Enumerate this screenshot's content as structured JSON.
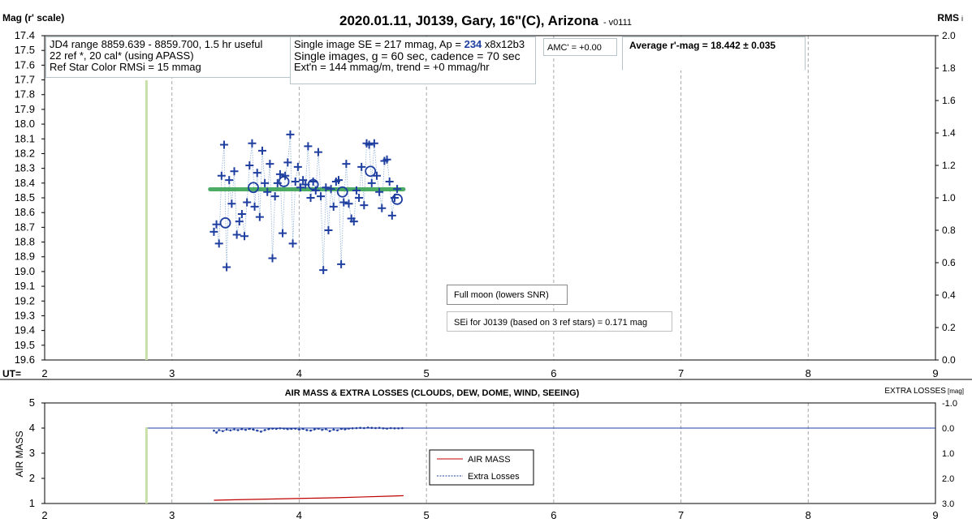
{
  "title": "2020.01.11, J0139, Gary, 16\"(C), Arizona",
  "version": "- v0111",
  "top_left_label": "Mag (r' scale)",
  "top_right_label": "RMS",
  "top_right_suffix": "i",
  "ut_label": "UT=",
  "info_box_1": [
    "JD4 range 8859.639 - 8859.700, 1.5 hr useful",
    "22 ref *, 20 cal* (using APASS)",
    "Ref Star Color RMSi = 15 mmag"
  ],
  "info_box_2": {
    "line1_prefix": "Single image SE = 217 mmag, Ap =",
    "line1_ap": "234",
    "line1_suffix": "x8x12b3",
    "line2": "Single images, g = 60 sec, cadence = 70 sec",
    "line3": "Ext'n = 144 mmag/m, trend = +0 mmag/hr"
  },
  "amc_label": "AMC' = +0.00",
  "average_label": "Average r'-mag =  18.442 ± 0.035",
  "note_full_moon": "Full moon (lowers SNR)",
  "note_sei": "SEi for J0139 (based on 3 ref stars) = 0.171 mag",
  "bottom_title": "AIR MASS & EXTRA LOSSES (CLOUDS, DEW, DOME, WIND, SEEING)",
  "bottom_right_label": "EXTRA LOSSES",
  "bottom_right_unit": "[mag]",
  "bottom_ylabel": "AIR MASS",
  "colors": {
    "points": "#1f3fa0",
    "average_line": "#2e9e4a",
    "marker_line": "#c8e0a8",
    "airmass": "#c00000",
    "extra_losses": "#1f3fa0",
    "grid": "#a8a8a8"
  },
  "chart_data": [
    {
      "type": "scatter",
      "x_label": "UT",
      "xlim": [
        2,
        9
      ],
      "x_ticks": [
        2,
        3,
        4,
        5,
        6,
        7,
        8,
        9
      ],
      "y_label": "Mag (r' scale)",
      "ylim": [
        17.4,
        19.6
      ],
      "y_inverted": true,
      "y_ticks": [
        17.4,
        17.5,
        17.6,
        17.7,
        17.8,
        17.9,
        18.0,
        18.1,
        18.2,
        18.3,
        18.4,
        18.5,
        18.6,
        18.7,
        18.8,
        18.9,
        19.0,
        19.1,
        19.2,
        19.3,
        19.4,
        19.5,
        19.6
      ],
      "y2_label": "RMS i",
      "y2lim": [
        0.0,
        2.0
      ],
      "y2_ticks": [
        0.0,
        0.2,
        0.4,
        0.6,
        0.8,
        1.0,
        1.2,
        1.4,
        1.6,
        1.8,
        2.0
      ],
      "vertical_marker_x": 2.8,
      "average_mag": 18.442,
      "average_x_range": [
        3.3,
        4.82
      ],
      "series": [
        {
          "marker": "plus",
          "x": [
            3.33,
            3.35,
            3.37,
            3.39,
            3.41,
            3.43,
            3.45,
            3.47,
            3.49,
            3.51,
            3.53,
            3.55,
            3.57,
            3.59,
            3.61,
            3.63,
            3.65,
            3.67,
            3.69,
            3.71,
            3.73,
            3.75,
            3.77,
            3.79,
            3.81,
            3.83,
            3.85,
            3.87,
            3.89,
            3.91,
            3.93,
            3.95,
            3.97,
            3.99,
            4.01,
            4.03,
            4.05,
            4.07,
            4.09,
            4.11,
            4.13,
            4.15,
            4.17,
            4.19,
            4.21,
            4.23,
            4.25,
            4.27,
            4.29,
            4.31,
            4.33,
            4.35,
            4.37,
            4.39,
            4.41,
            4.43,
            4.45,
            4.47,
            4.49,
            4.51,
            4.53,
            4.55,
            4.57,
            4.59,
            4.61,
            4.63,
            4.65,
            4.67,
            4.69,
            4.71,
            4.73,
            4.75,
            4.77
          ],
          "y": [
            18.73,
            18.68,
            18.81,
            18.35,
            18.14,
            18.97,
            18.38,
            18.54,
            18.32,
            18.75,
            18.66,
            18.61,
            18.76,
            18.53,
            18.28,
            18.13,
            18.56,
            18.33,
            18.63,
            18.18,
            18.4,
            18.46,
            18.27,
            18.91,
            18.49,
            18.4,
            18.34,
            18.74,
            18.35,
            18.26,
            18.07,
            18.81,
            18.39,
            18.29,
            18.43,
            18.38,
            18.41,
            18.15,
            18.5,
            18.39,
            18.45,
            18.19,
            18.49,
            18.99,
            18.43,
            18.72,
            18.44,
            18.56,
            18.39,
            18.38,
            18.95,
            18.53,
            18.27,
            18.54,
            18.64,
            18.66,
            18.45,
            18.5,
            18.29,
            18.55,
            18.13,
            18.14,
            18.4,
            18.13,
            18.35,
            18.46,
            18.57,
            18.25,
            18.24,
            18.39,
            18.62,
            18.5,
            18.44
          ]
        },
        {
          "marker": "circle",
          "x": [
            3.42,
            3.64,
            3.88,
            4.11,
            4.34,
            4.56,
            4.77
          ],
          "y": [
            18.67,
            18.43,
            18.39,
            18.41,
            18.46,
            18.32,
            18.51
          ]
        }
      ]
    },
    {
      "type": "line",
      "x_label": "UT",
      "xlim": [
        2,
        9
      ],
      "x_ticks": [
        2,
        3,
        4,
        5,
        6,
        7,
        8,
        9
      ],
      "y_label": "AIR MASS",
      "ylim": [
        1,
        5
      ],
      "y_ticks": [
        1,
        2,
        3,
        4,
        5
      ],
      "y2_label": "EXTRA LOSSES [mag]",
      "y2lim": [
        3.0,
        -1.0
      ],
      "y2_ticks": [
        -1.0,
        0.0,
        1.0,
        2.0,
        3.0
      ],
      "vertical_marker_x": 2.8,
      "legend": "center",
      "series": [
        {
          "name": "AIR MASS",
          "x": [
            3.33,
            3.5,
            3.7,
            3.9,
            4.1,
            4.3,
            4.5,
            4.7,
            4.82
          ],
          "y": [
            1.13,
            1.15,
            1.17,
            1.19,
            1.21,
            1.23,
            1.26,
            1.29,
            1.31
          ]
        },
        {
          "name": "Extra Losses",
          "x": [
            3.33,
            3.35,
            3.37,
            3.4,
            3.43,
            3.46,
            3.49,
            3.52,
            3.55,
            3.58,
            3.61,
            3.64,
            3.67,
            3.7,
            3.73,
            3.76,
            3.79,
            3.82,
            3.85,
            3.88,
            3.91,
            3.94,
            3.97,
            4.0,
            4.03,
            4.06,
            4.09,
            4.12,
            4.15,
            4.18,
            4.21,
            4.24,
            4.27,
            4.3,
            4.33,
            4.36,
            4.39,
            4.42,
            4.45,
            4.48,
            4.51,
            4.54,
            4.57,
            4.6,
            4.63,
            4.66,
            4.69,
            4.72,
            4.75,
            4.78,
            4.81
          ],
          "y": [
            0.1,
            0.18,
            0.08,
            0.12,
            0.06,
            0.09,
            0.05,
            0.08,
            0.04,
            0.07,
            0.03,
            0.06,
            0.1,
            0.14,
            0.08,
            0.04,
            0.02,
            0.03,
            0.01,
            0.02,
            0.04,
            0.03,
            0.02,
            0.06,
            0.03,
            0.08,
            0.1,
            0.05,
            0.02,
            0.07,
            0.04,
            0.12,
            0.06,
            0.09,
            0.03,
            0.05,
            0.02,
            0.01,
            0.0,
            -0.01,
            0.0,
            -0.02,
            -0.01,
            0.0,
            -0.01,
            0.01,
            0.02,
            0.0,
            0.01,
            0.01,
            0.0
          ]
        }
      ]
    }
  ]
}
